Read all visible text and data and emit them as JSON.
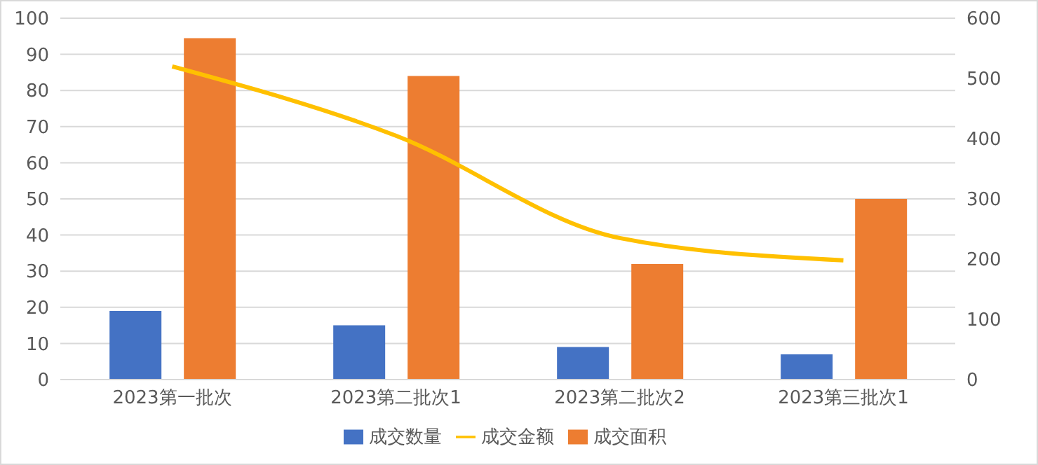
{
  "chart_data": {
    "type": "bar",
    "categories": [
      "2023第一批次",
      "2023第二批次1",
      "2023第二批次2",
      "2023第三批次1"
    ],
    "series": [
      {
        "name": "成交数量",
        "color": "#4472c4",
        "values": [
          19,
          15,
          9,
          7
        ]
      },
      {
        "name": "成交面积",
        "color": "#ed7d31",
        "values": [
          94.5,
          84,
          32,
          50
        ]
      },
      {
        "name": "成交金额",
        "color": "#ffc000",
        "type": "line",
        "axis": "y2",
        "values": [
          520,
          405,
          235,
          198
        ]
      }
    ],
    "ylim": [
      0,
      100
    ],
    "yticks": [
      0,
      10,
      20,
      30,
      40,
      50,
      60,
      70,
      80,
      90,
      100
    ],
    "y2lim": [
      0,
      600
    ],
    "y2ticks": [
      0,
      100,
      200,
      300,
      400,
      500,
      600
    ],
    "grid": "y",
    "legend": "bottom",
    "marker": "none"
  }
}
